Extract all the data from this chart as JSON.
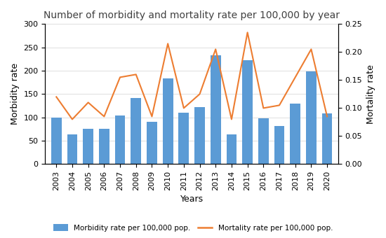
{
  "title": "Number of morbidity and mortality rate per 100,000 by year",
  "years": [
    2003,
    2004,
    2005,
    2006,
    2007,
    2008,
    2009,
    2010,
    2011,
    2012,
    2013,
    2014,
    2015,
    2016,
    2017,
    2018,
    2019,
    2020
  ],
  "morbidity": [
    100,
    63,
    75,
    75,
    104,
    141,
    90,
    183,
    110,
    122,
    233,
    63,
    222,
    98,
    81,
    130,
    198,
    108
  ],
  "mortality": [
    0.12,
    0.08,
    0.11,
    0.085,
    0.155,
    0.16,
    0.085,
    0.215,
    0.1,
    0.125,
    0.205,
    0.08,
    0.235,
    0.1,
    0.105,
    0.155,
    0.205,
    0.085
  ],
  "bar_color": "#5B9BD5",
  "line_color": "#ED7D31",
  "ylabel_left": "Morbidity rate",
  "ylabel_right": "Mortality rate",
  "xlabel": "Years",
  "ylim_left": [
    0,
    300
  ],
  "ylim_right": [
    0,
    0.25
  ],
  "yticks_left": [
    0,
    50,
    100,
    150,
    200,
    250,
    300
  ],
  "yticks_right": [
    0,
    0.05,
    0.1,
    0.15,
    0.2,
    0.25
  ],
  "legend_bar": "Morbidity rate per 100,000 pop.",
  "legend_line": "Mortality rate per 100,000 pop.",
  "background_color": "#ffffff",
  "title_fontsize": 10,
  "axis_fontsize": 8,
  "label_fontsize": 9,
  "legend_fontsize": 7.5
}
